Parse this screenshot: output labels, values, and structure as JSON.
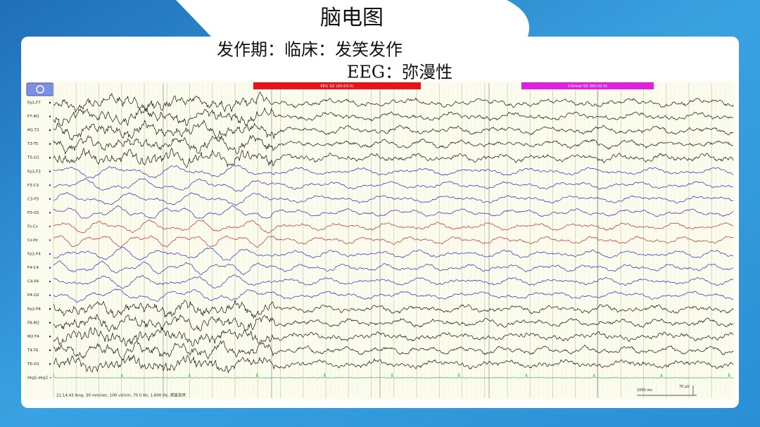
{
  "header": {
    "title": "脑电图",
    "line1": "发作期：临床：发笑发作",
    "line2": "EEG：弥漫性"
  },
  "eeg": {
    "markers": [
      {
        "label": "EEG SZ (00:03.0)",
        "color": "#e8141b"
      },
      {
        "label": "Clinical SZ (00:02.4)",
        "color": "#e020e0"
      }
    ],
    "channels": [
      {
        "name": "Fp1-F7",
        "color": "#111"
      },
      {
        "name": "F7-M1",
        "color": "#111"
      },
      {
        "name": "M1-T3",
        "color": "#111"
      },
      {
        "name": "T3-T5",
        "color": "#111"
      },
      {
        "name": "T5-O1",
        "color": "#111"
      },
      {
        "name": "Fp1-F3",
        "color": "#2a2ab8"
      },
      {
        "name": "F3-C3",
        "color": "#2a2ab8"
      },
      {
        "name": "C3-P3",
        "color": "#2a2ab8"
      },
      {
        "name": "P3-O1",
        "color": "#2a2ab8"
      },
      {
        "name": "Fz-Cz",
        "color": "#c8282d"
      },
      {
        "name": "Cz-Pz",
        "color": "#c8282d"
      },
      {
        "name": "Fp2-F4",
        "color": "#2a2ab8"
      },
      {
        "name": "F4-C4",
        "color": "#2a2ab8"
      },
      {
        "name": "C4-P4",
        "color": "#2a2ab8"
      },
      {
        "name": "P4-O2",
        "color": "#2a2ab8"
      },
      {
        "name": "Fp2-F8",
        "color": "#111"
      },
      {
        "name": "F8-M2",
        "color": "#111"
      },
      {
        "name": "M2-T4",
        "color": "#111"
      },
      {
        "name": "T4-T6",
        "color": "#111"
      },
      {
        "name": "T6-O2",
        "color": "#111"
      },
      {
        "name": "ekg1-ekg2",
        "color": "#38c038"
      }
    ],
    "footer": "21:14:43 long, 30 mm/sec, 100 uV/cm, 70.0 Hz, 1.600 Hz, 滤波关闭",
    "time_scale": "1000 ms",
    "amp_scale": "70 µV"
  }
}
